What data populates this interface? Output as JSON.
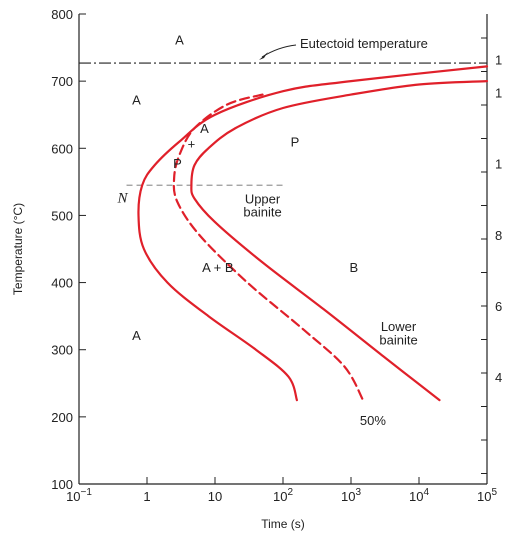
{
  "chart_data": {
    "type": "line",
    "xlabel": "Time (s)",
    "ylabel": "Temperature (°C)",
    "x_scale": "log",
    "xlim": [
      0.1,
      100000
    ],
    "ylim": [
      100,
      800
    ],
    "x_ticks": [
      {
        "value": 0.1,
        "base": "10",
        "exp": "−1"
      },
      {
        "value": 1,
        "label": "1"
      },
      {
        "value": 10,
        "label": "10"
      },
      {
        "value": 100,
        "base": "10",
        "exp": "2"
      },
      {
        "value": 1000,
        "base": "10",
        "exp": "3"
      },
      {
        "value": 10000,
        "base": "10",
        "exp": "4"
      },
      {
        "value": 100000,
        "base": "10",
        "exp": "5"
      }
    ],
    "y_ticks": [
      100,
      200,
      300,
      400,
      500,
      600,
      700,
      800
    ],
    "right_axis_partial_labels": [
      {
        "y": 732,
        "text": "1"
      },
      {
        "y": 683,
        "text": "1"
      },
      {
        "y": 577,
        "text": "1"
      },
      {
        "y": 471,
        "text": "8"
      },
      {
        "y": 365,
        "text": "6"
      },
      {
        "y": 259,
        "text": "4"
      }
    ],
    "eutectoid": {
      "temperature": 727,
      "label": "Eutectoid temperature"
    },
    "dashed_reference_line": {
      "temperature": 545,
      "x_from": 0.5,
      "x_to": 100
    },
    "series": [
      {
        "style": "solid",
        "color": "#e0202a",
        "points": [
          [
            100000,
            722
          ],
          [
            1000,
            700
          ],
          [
            100,
            685
          ],
          [
            10,
            650
          ],
          [
            3,
            610
          ],
          [
            1.3,
            575
          ],
          [
            0.85,
            545
          ],
          [
            0.75,
            500
          ],
          [
            0.9,
            450
          ],
          [
            2,
            400
          ],
          [
            8,
            350
          ],
          [
            40,
            300
          ],
          [
            120,
            260
          ],
          [
            160,
            225
          ]
        ]
      },
      {
        "style": "dashed",
        "color": "#e0202a",
        "name": "50%",
        "points": [
          [
            50,
            680
          ],
          [
            15,
            665
          ],
          [
            5,
            630
          ],
          [
            3,
            590
          ],
          [
            2.5,
            555
          ],
          [
            2.8,
            520
          ],
          [
            6,
            470
          ],
          [
            30,
            400
          ],
          [
            200,
            330
          ],
          [
            800,
            275
          ],
          [
            1500,
            225
          ]
        ]
      },
      {
        "style": "solid",
        "color": "#e0202a",
        "points": [
          [
            100000,
            700
          ],
          [
            10000,
            695
          ],
          [
            1000,
            680
          ],
          [
            100,
            660
          ],
          [
            20,
            630
          ],
          [
            8,
            600
          ],
          [
            5,
            575
          ],
          [
            4.5,
            545
          ],
          [
            5,
            525
          ],
          [
            10,
            490
          ],
          [
            50,
            430
          ],
          [
            400,
            360
          ],
          [
            3000,
            290
          ],
          [
            20000,
            225
          ]
        ]
      }
    ],
    "region_labels": [
      {
        "text": "A",
        "x": 3,
        "y": 762
      },
      {
        "text": "A",
        "x": 0.7,
        "y": 673
      },
      {
        "text": "A",
        "x": 0.7,
        "y": 322
      },
      {
        "text": "P",
        "x": 150,
        "y": 610
      },
      {
        "text": "P",
        "x": 2.8,
        "y": 578
      },
      {
        "text": "+",
        "x": 4.5,
        "y": 607
      },
      {
        "text": "A",
        "x": 7,
        "y": 630
      },
      {
        "text": "Upper",
        "x": 50,
        "y": 525
      },
      {
        "text": "bainite",
        "x": 50,
        "y": 506
      },
      {
        "text": "A + B",
        "x": 11,
        "y": 423
      },
      {
        "text": "B",
        "x": 1100,
        "y": 423
      },
      {
        "text": "Lower",
        "x": 5000,
        "y": 335
      },
      {
        "text": "bainite",
        "x": 5000,
        "y": 315
      },
      {
        "text": "50%",
        "x": 2100,
        "y": 195
      }
    ],
    "italic_labels": [
      {
        "text": "N",
        "x": 0.5,
        "y": 527
      }
    ]
  }
}
